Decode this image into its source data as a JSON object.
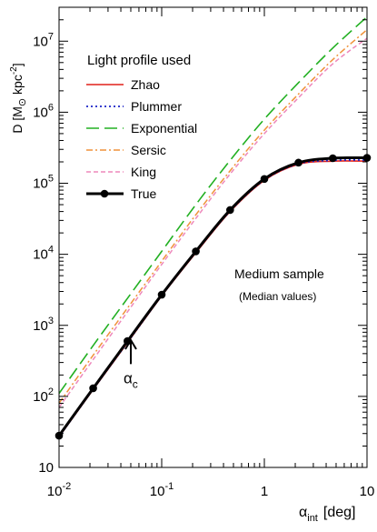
{
  "chart_data": {
    "type": "line",
    "xscale": "log",
    "yscale": "log",
    "xlim": [
      0.01,
      10
    ],
    "ylim": [
      10,
      30000000
    ],
    "xlabel": "α_int [deg]",
    "xlabel_main": "α",
    "xlabel_sub": "int",
    "xlabel_unit": "[deg]",
    "ylabel": "D [M⊙ kpc⁻²]",
    "ylabel_parts": {
      "a": "D [M",
      "sun": "⊙",
      "b": " kpc",
      "exp": "-2",
      "c": "]"
    },
    "x_tick_labels": [
      {
        "value": 0.01,
        "base": "10",
        "exp": "-2"
      },
      {
        "value": 0.1,
        "base": "10",
        "exp": "-1"
      },
      {
        "value": 1,
        "base": "1",
        "exp": ""
      },
      {
        "value": 10,
        "base": "10",
        "exp": ""
      }
    ],
    "y_tick_labels": [
      {
        "value": 10,
        "base": "10",
        "exp": ""
      },
      {
        "value": 100,
        "base": "10",
        "exp": "2"
      },
      {
        "value": 1000,
        "base": "10",
        "exp": "3"
      },
      {
        "value": 10000,
        "base": "10",
        "exp": "4"
      },
      {
        "value": 100000,
        "base": "10",
        "exp": "5"
      },
      {
        "value": 1000000,
        "base": "10",
        "exp": "6"
      },
      {
        "value": 10000000,
        "base": "10",
        "exp": "7"
      }
    ],
    "legend_title": "Light profile used",
    "legend_position": "top-left",
    "grid": false,
    "annotations": {
      "sample_title": "Medium sample",
      "sample_subtitle": "(Median values)",
      "alpha_c_main": "α",
      "alpha_c_sub": "c",
      "alpha_c_x": 0.05,
      "alpha_c_arrow_top_y": 620,
      "alpha_c_arrow_bottom_y": 285
    },
    "series": [
      {
        "name": "Zhao",
        "color": "#e0201a",
        "dash": "solid",
        "width": 1.6,
        "x": [
          0.01,
          0.0215,
          0.0464,
          0.1,
          0.215,
          0.464,
          1,
          2.15,
          4.64,
          10
        ],
        "y": [
          27,
          125,
          570,
          2600,
          10500,
          40000,
          110000,
          185000,
          205000,
          205000
        ]
      },
      {
        "name": "Plummer",
        "color": "#1a22c8",
        "dash": "dot",
        "width": 1.8,
        "x": [
          0.01,
          0.0215,
          0.0464,
          0.1,
          0.215,
          0.464,
          1,
          2.15,
          4.64,
          10
        ],
        "y": [
          27,
          126,
          575,
          2620,
          10700,
          40500,
          111000,
          188000,
          210000,
          212000
        ]
      },
      {
        "name": "Exponential",
        "color": "#22b022",
        "dash": "longdash",
        "width": 1.6,
        "x": [
          0.01,
          0.0215,
          0.0464,
          0.1,
          0.215,
          0.464,
          1,
          2.15,
          4.64,
          10
        ],
        "y": [
          110,
          520,
          2400,
          11000,
          50000,
          210000,
          800000,
          2600000,
          8000000,
          22000000
        ]
      },
      {
        "name": "Sersic",
        "color": "#f0923a",
        "dash": "dashdot",
        "width": 1.5,
        "x": [
          0.01,
          0.0215,
          0.0464,
          0.1,
          0.215,
          0.464,
          1,
          2.15,
          4.64,
          10
        ],
        "y": [
          80,
          380,
          1750,
          8000,
          36000,
          150000,
          560000,
          1800000,
          5500000,
          14500000
        ]
      },
      {
        "name": "King",
        "color": "#ee88bb",
        "dash": "dash",
        "width": 1.5,
        "x": [
          0.01,
          0.0215,
          0.0464,
          0.1,
          0.215,
          0.464,
          1,
          2.15,
          4.64,
          10
        ],
        "y": [
          70,
          330,
          1550,
          7200,
          32000,
          135000,
          500000,
          1600000,
          4800000,
          11000000
        ]
      },
      {
        "name": "True",
        "color": "#000000",
        "dash": "solid",
        "width": 3.0,
        "markers": true,
        "x": [
          0.01,
          0.0215,
          0.0464,
          0.1,
          0.215,
          0.464,
          1,
          2.15,
          4.64,
          10
        ],
        "y": [
          28,
          130,
          600,
          2700,
          11000,
          42000,
          115000,
          195000,
          225000,
          228000
        ]
      }
    ]
  }
}
